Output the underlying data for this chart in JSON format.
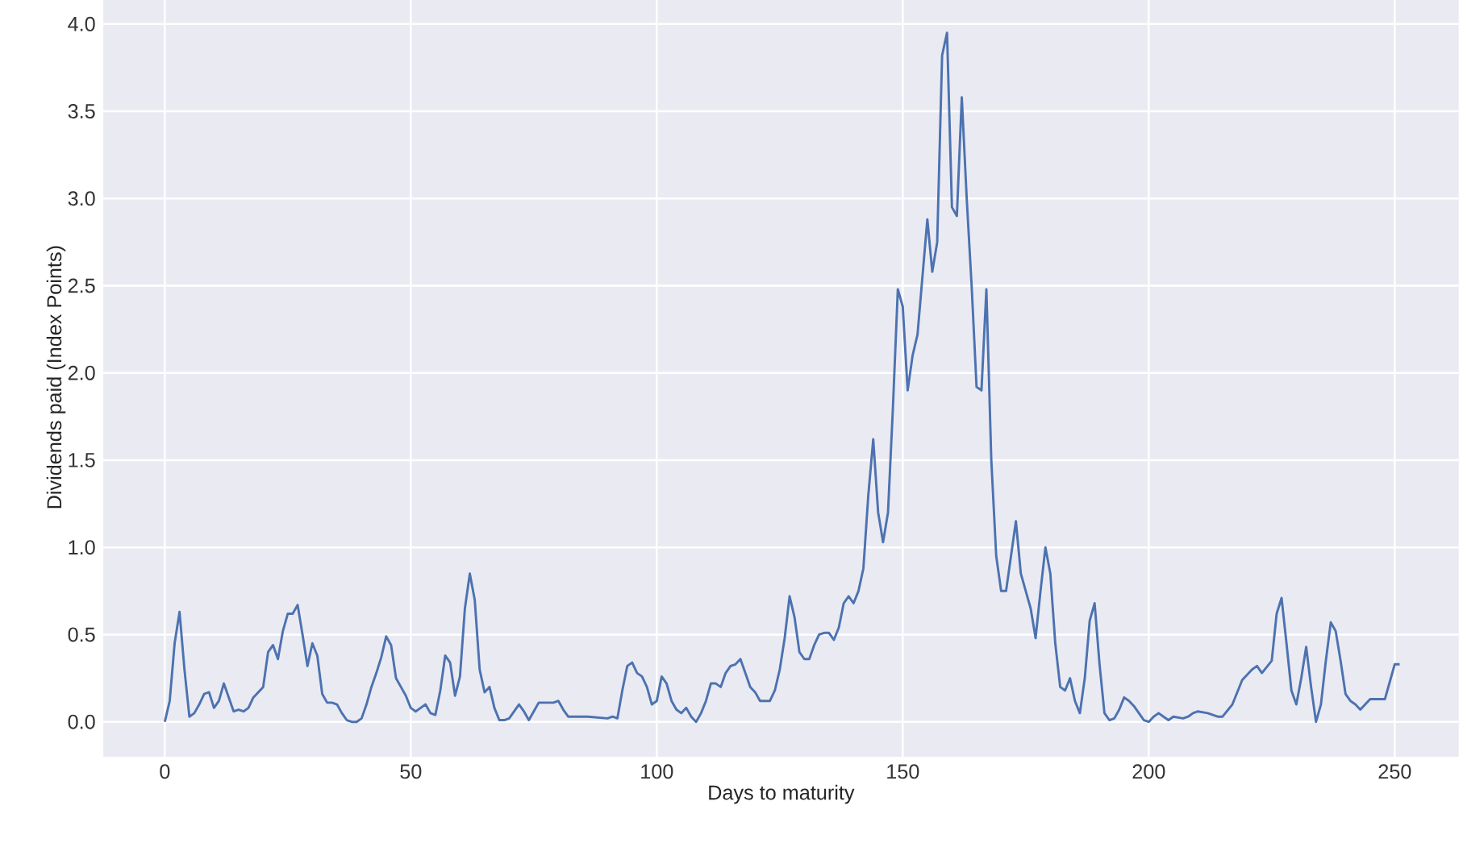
{
  "chart_data": {
    "type": "line",
    "xlabel": "Days to maturity",
    "ylabel": "Dividends paid (Index Points)",
    "xlim": [
      -12.5,
      263
    ],
    "ylim": [
      -0.2,
      4.15
    ],
    "xticks": [
      0,
      50,
      100,
      150,
      200,
      250
    ],
    "yticks": [
      {
        "value": 0,
        "label": "0.0"
      },
      {
        "value": 0.5,
        "label": "0.5"
      },
      {
        "value": 1,
        "label": "1.0"
      },
      {
        "value": 1.5,
        "label": "1.5"
      },
      {
        "value": 2,
        "label": "2.0"
      },
      {
        "value": 2.5,
        "label": "2.5"
      },
      {
        "value": 3,
        "label": "3.0"
      },
      {
        "value": 3.5,
        "label": "3.5"
      },
      {
        "value": 4,
        "label": "4.0"
      }
    ],
    "grid": true,
    "marker": "none",
    "line_style": "solid",
    "series": [
      {
        "color": "#4c72b0",
        "x": [
          0,
          1,
          2,
          3,
          4,
          5,
          6,
          7,
          8,
          9,
          10,
          11,
          12,
          13,
          14,
          15,
          16,
          17,
          18,
          19,
          20,
          21,
          22,
          23,
          24,
          25,
          26,
          27,
          28,
          29,
          30,
          31,
          32,
          33,
          34,
          35,
          36,
          37,
          38,
          39,
          40,
          41,
          42,
          43,
          44,
          45,
          46,
          47,
          48,
          49,
          50,
          51,
          52,
          53,
          54,
          55,
          56,
          57,
          58,
          59,
          60,
          61,
          62,
          63,
          64,
          65,
          66,
          67,
          68,
          69,
          70,
          71,
          72,
          73,
          74,
          75,
          76,
          77,
          78,
          79,
          80,
          81,
          82,
          86,
          90,
          91,
          92,
          93,
          94,
          95,
          96,
          97,
          98,
          99,
          100,
          101,
          102,
          103,
          104,
          105,
          106,
          107,
          108,
          109,
          110,
          111,
          112,
          113,
          114,
          115,
          116,
          117,
          118,
          119,
          120,
          121,
          122,
          123,
          124,
          125,
          126,
          127,
          128,
          129,
          130,
          131,
          132,
          133,
          134,
          135,
          136,
          137,
          138,
          139,
          140,
          141,
          142,
          143,
          144,
          145,
          146,
          147,
          148,
          149,
          150,
          151,
          152,
          153,
          154,
          155,
          156,
          157,
          158,
          159,
          160,
          161,
          162,
          163,
          164,
          165,
          166,
          167,
          168,
          169,
          170,
          171,
          172,
          173,
          174,
          175,
          176,
          177,
          178,
          179,
          180,
          181,
          182,
          183,
          184,
          185,
          186,
          187,
          188,
          189,
          190,
          191,
          192,
          193,
          194,
          195,
          196,
          197,
          198,
          199,
          200,
          201,
          202,
          203,
          204,
          205,
          207,
          208,
          209,
          210,
          212,
          214,
          215,
          217,
          219,
          221,
          222,
          223,
          225,
          226,
          227,
          228,
          229,
          230,
          231,
          232,
          233,
          234,
          235,
          236,
          237,
          238,
          239,
          240,
          241,
          242,
          243,
          244,
          245,
          248,
          250,
          251
        ],
        "values": [
          0.0,
          0.12,
          0.45,
          0.63,
          0.3,
          0.03,
          0.05,
          0.1,
          0.16,
          0.17,
          0.08,
          0.12,
          0.22,
          0.14,
          0.06,
          0.07,
          0.06,
          0.08,
          0.14,
          0.17,
          0.2,
          0.4,
          0.44,
          0.36,
          0.52,
          0.62,
          0.62,
          0.67,
          0.5,
          0.32,
          0.45,
          0.38,
          0.16,
          0.11,
          0.11,
          0.1,
          0.05,
          0.01,
          0.0,
          0.0,
          0.02,
          0.1,
          0.2,
          0.28,
          0.37,
          0.49,
          0.44,
          0.25,
          0.2,
          0.15,
          0.08,
          0.06,
          0.08,
          0.1,
          0.05,
          0.04,
          0.18,
          0.38,
          0.34,
          0.15,
          0.26,
          0.65,
          0.85,
          0.7,
          0.3,
          0.17,
          0.2,
          0.08,
          0.01,
          0.01,
          0.02,
          0.06,
          0.1,
          0.06,
          0.01,
          0.06,
          0.11,
          0.11,
          0.11,
          0.11,
          0.12,
          0.07,
          0.03,
          0.03,
          0.02,
          0.03,
          0.02,
          0.18,
          0.32,
          0.34,
          0.28,
          0.26,
          0.2,
          0.1,
          0.12,
          0.26,
          0.22,
          0.12,
          0.07,
          0.05,
          0.08,
          0.03,
          0.0,
          0.05,
          0.12,
          0.22,
          0.22,
          0.2,
          0.28,
          0.32,
          0.33,
          0.36,
          0.28,
          0.2,
          0.17,
          0.12,
          0.12,
          0.12,
          0.18,
          0.3,
          0.48,
          0.72,
          0.6,
          0.4,
          0.36,
          0.36,
          0.44,
          0.5,
          0.51,
          0.51,
          0.47,
          0.54,
          0.68,
          0.72,
          0.68,
          0.75,
          0.88,
          1.3,
          1.62,
          1.2,
          1.03,
          1.2,
          1.8,
          2.48,
          2.38,
          1.9,
          2.1,
          2.22,
          2.55,
          2.88,
          2.58,
          2.75,
          3.82,
          3.95,
          2.95,
          2.9,
          3.58,
          3.0,
          2.5,
          1.92,
          1.9,
          2.48,
          1.5,
          0.95,
          0.75,
          0.75,
          0.95,
          1.15,
          0.85,
          0.75,
          0.65,
          0.48,
          0.75,
          1.0,
          0.85,
          0.45,
          0.2,
          0.18,
          0.25,
          0.12,
          0.05,
          0.25,
          0.58,
          0.68,
          0.33,
          0.05,
          0.01,
          0.02,
          0.07,
          0.14,
          0.12,
          0.09,
          0.05,
          0.01,
          0.0,
          0.03,
          0.05,
          0.03,
          0.01,
          0.03,
          0.02,
          0.03,
          0.05,
          0.06,
          0.05,
          0.03,
          0.03,
          0.1,
          0.24,
          0.3,
          0.32,
          0.28,
          0.35,
          0.62,
          0.71,
          0.45,
          0.18,
          0.1,
          0.25,
          0.43,
          0.2,
          0.0,
          0.1,
          0.35,
          0.57,
          0.52,
          0.35,
          0.16,
          0.12,
          0.1,
          0.07,
          0.1,
          0.13,
          0.13,
          0.33,
          0.33
        ]
      }
    ]
  }
}
